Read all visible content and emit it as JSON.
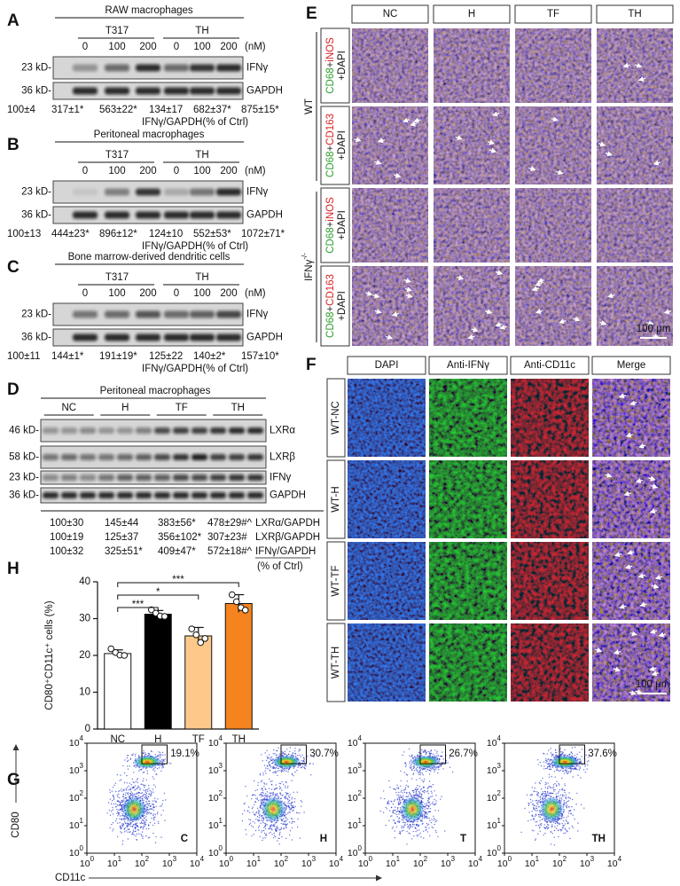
{
  "panel_a": {
    "letter": "A",
    "title": "RAW macrophages",
    "groups": [
      "T317",
      "TH"
    ],
    "doses": [
      "0",
      "100",
      "200",
      "0",
      "100",
      "200"
    ],
    "unit": "(nM)",
    "blots": [
      {
        "size": "23 kD-",
        "label": "IFNγ"
      },
      {
        "size": "36 kD-",
        "label": "GAPDH"
      }
    ],
    "quant": [
      "100±4",
      "317±1*",
      "563±22*",
      "134±17",
      "682±37*",
      "875±15*"
    ],
    "quant_label": "IFNγ/GAPDH(% of Ctrl)"
  },
  "panel_b": {
    "letter": "B",
    "title": "Peritoneal macrophages",
    "groups": [
      "T317",
      "TH"
    ],
    "doses": [
      "0",
      "100",
      "200",
      "0",
      "100",
      "200"
    ],
    "unit": "(nM)",
    "blots": [
      {
        "size": "23 kD-",
        "label": "IFNγ"
      },
      {
        "size": "36 kD-",
        "label": "GAPDH"
      }
    ],
    "quant": [
      "100±13",
      "444±23*",
      "896±12*",
      "124±10",
      "552±53*",
      "1072±71*"
    ],
    "quant_label": "IFNγ/GAPDH(% of Ctrl)"
  },
  "panel_c": {
    "letter": "C",
    "title": "Bone marrow-derived dendritic cells",
    "groups": [
      "T317",
      "TH"
    ],
    "doses": [
      "0",
      "100",
      "200",
      "0",
      "100",
      "200"
    ],
    "unit": "(nM)",
    "blots": [
      {
        "size": "23 kD-",
        "label": "IFNγ"
      },
      {
        "size": "36 kD-",
        "label": "GAPDH"
      }
    ],
    "quant": [
      "100±11",
      "144±1*",
      "191±19*",
      "125±22",
      "140±2*",
      "157±10*"
    ],
    "quant_label": "IFNγ/GAPDH(% of Ctrl)"
  },
  "panel_d": {
    "letter": "D",
    "title": "Peritoneal macrophages",
    "groups": [
      "NC",
      "H",
      "TF",
      "TH"
    ],
    "blots": [
      {
        "size": "46 kD-",
        "label": "LXRα"
      },
      {
        "size": "58 kD-",
        "label": "LXRβ"
      },
      {
        "size": "23 kD-",
        "label": "IFNγ"
      },
      {
        "size": "36 kD-",
        "label": "GAPDH"
      }
    ],
    "quant": [
      {
        "values": [
          "100±30",
          "145±44",
          "383±56*",
          "478±29#^"
        ],
        "label": "LXRα/GAPDH"
      },
      {
        "values": [
          "100±19",
          "125±37",
          "356±102*",
          "307±23#"
        ],
        "label": "LXRβ/GAPDH"
      },
      {
        "values": [
          "100±32",
          "325±51*",
          "409±47*",
          "572±18#^"
        ],
        "label": "IFNγ/GAPDH"
      }
    ],
    "note": "(% of Ctrl)"
  },
  "panel_e": {
    "letter": "E",
    "columns": [
      "NC",
      "H",
      "TF",
      "TH"
    ],
    "groups": [
      {
        "label": "WT",
        "rows": [
          {
            "line1": [
              "CD68",
              "+",
              "iNOS"
            ],
            "line2": "+DAPI"
          },
          {
            "line1": [
              "CD68",
              "+",
              "CD163"
            ],
            "line2": "+DAPI"
          }
        ]
      },
      {
        "label": "IFNγ",
        "sup": "-/-",
        "rows": [
          {
            "line1": [
              "CD68",
              "+",
              "iNOS"
            ],
            "line2": "+DAPI"
          },
          {
            "line1": [
              "CD68",
              "+",
              "CD163"
            ],
            "line2": "+DAPI"
          }
        ]
      }
    ],
    "scale_bar": "100 μm"
  },
  "panel_f": {
    "letter": "F",
    "columns": [
      "DAPI",
      "Anti-IFNγ",
      "Anti-CD11c",
      "Merge"
    ],
    "rows": [
      "WT-NC",
      "WT-H",
      "WT-TF",
      "WT-TH"
    ],
    "scale_bar": "100 μm"
  },
  "panel_g": {
    "letter": "G",
    "y_label": "CD80",
    "x_label": "CD11c",
    "ticks": [
      {
        "base": "10",
        "exp": "0"
      },
      {
        "base": "10",
        "exp": "1"
      },
      {
        "base": "10",
        "exp": "2"
      },
      {
        "base": "10",
        "exp": "3"
      },
      {
        "base": "10",
        "exp": "4"
      }
    ],
    "plots": [
      {
        "percent": "19.1%",
        "label": "C"
      },
      {
        "percent": "30.7%",
        "label": "H"
      },
      {
        "percent": "26.7%",
        "label": "T"
      },
      {
        "percent": "37.6%",
        "label": "TH"
      }
    ]
  },
  "chart_data": {
    "type": "bar",
    "label": "H",
    "ylabel": "CD80⁺CD11c⁺ cells (%)",
    "categories": [
      "NC",
      "H",
      "TF",
      "TH"
    ],
    "values": [
      20.5,
      31.2,
      25.3,
      34.1
    ],
    "errors": [
      1.0,
      1.0,
      2.3,
      2.4
    ],
    "points": [
      [
        21.8,
        20.8,
        20.1,
        20.0
      ],
      [
        32.4,
        31.5,
        30.7,
        30.6
      ],
      [
        27.2,
        25.6,
        23.5,
        24.6
      ],
      [
        36.5,
        34.6,
        33.0,
        32.3
      ]
    ],
    "colors": [
      "#ffffff",
      "#000000",
      "#fcc98a",
      "#f5841f"
    ],
    "ylim": [
      0,
      40
    ],
    "yticks": [
      0,
      10,
      20,
      30,
      40
    ],
    "annotations": [
      "***",
      "*",
      "***"
    ]
  }
}
